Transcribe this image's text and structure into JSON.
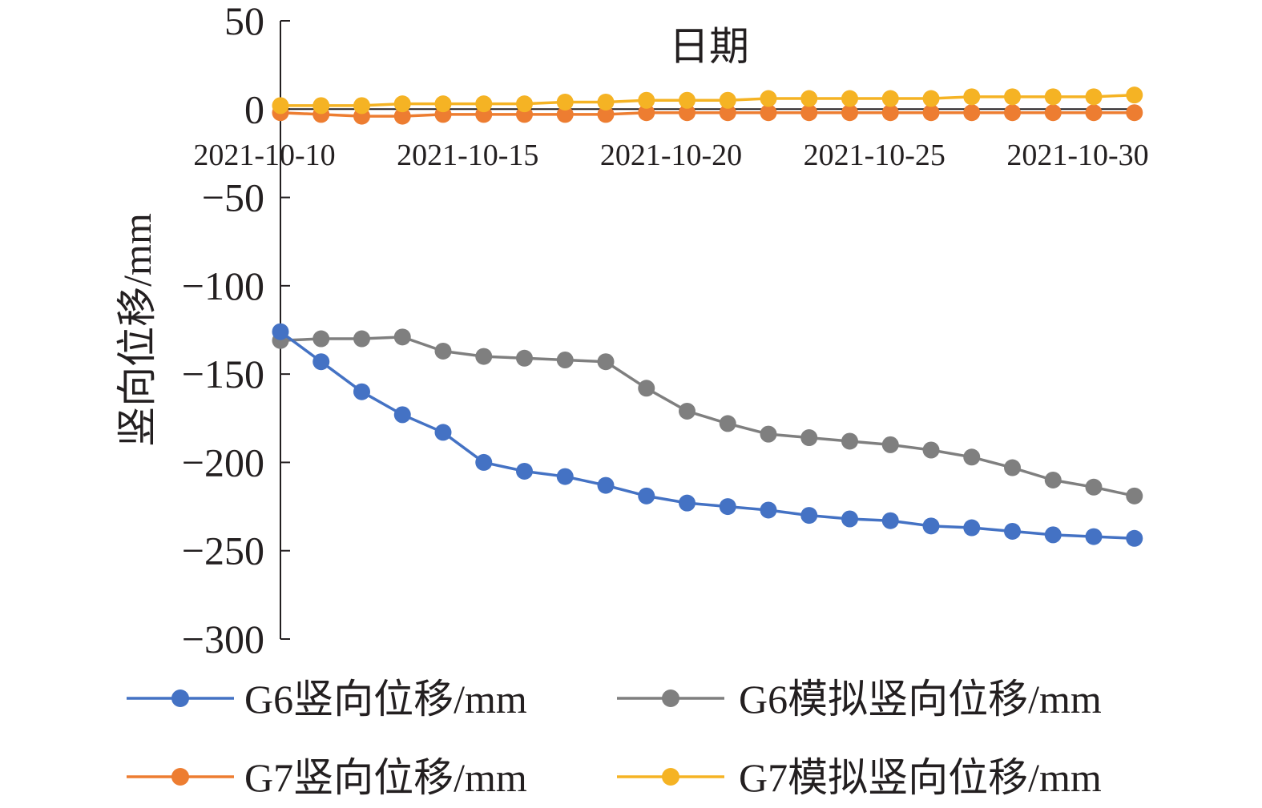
{
  "chart_data": {
    "type": "line",
    "title": "",
    "xlabel": "日期",
    "ylabel": "竖向位移/mm",
    "ylim": [
      -300,
      50
    ],
    "yticks": [
      50,
      0,
      -50,
      -100,
      -150,
      -200,
      -250,
      -300
    ],
    "ytick_labels": [
      "50",
      "0",
      "−50",
      "−100",
      "−150",
      "−200",
      "−250",
      "−300"
    ],
    "x": [
      "2021-10-10",
      "2021-10-11",
      "2021-10-12",
      "2021-10-13",
      "2021-10-14",
      "2021-10-15",
      "2021-10-16",
      "2021-10-17",
      "2021-10-18",
      "2021-10-19",
      "2021-10-20",
      "2021-10-21",
      "2021-10-22",
      "2021-10-23",
      "2021-10-24",
      "2021-10-25",
      "2021-10-26",
      "2021-10-27",
      "2021-10-28",
      "2021-10-29",
      "2021-10-30",
      "2021-10-31"
    ],
    "xtick_labels": [
      "2021-10-10",
      "2021-10-15",
      "2021-10-20",
      "2021-10-25",
      "2021-10-30"
    ],
    "grid": false,
    "legend_position": "bottom",
    "series": [
      {
        "name": "G6竖向位移/mm",
        "color": "#4472c4",
        "values": [
          -126,
          -143,
          -160,
          -173,
          -183,
          -200,
          -205,
          -208,
          -213,
          -219,
          -223,
          -225,
          -227,
          -230,
          -232,
          -233,
          -236,
          -237,
          -239,
          -241,
          -242,
          -243
        ]
      },
      {
        "name": "G6模拟竖向位移/mm",
        "color": "#7f7f7f",
        "values": [
          -131,
          -130,
          -130,
          -129,
          -137,
          -140,
          -141,
          -142,
          -143,
          -158,
          -171,
          -178,
          -184,
          -186,
          -188,
          -190,
          -193,
          -197,
          -203,
          -210,
          -214,
          -219
        ]
      },
      {
        "name": "G7竖向位移/mm",
        "color": "#ed7d31",
        "values": [
          -2,
          -3,
          -4,
          -4,
          -3,
          -3,
          -3,
          -3,
          -3,
          -2,
          -2,
          -2,
          -2,
          -2,
          -2,
          -2,
          -2,
          -2,
          -2,
          -2,
          -2,
          -2
        ]
      },
      {
        "name": "G7模拟竖向位移/mm",
        "color": "#f5b324",
        "values": [
          2,
          2,
          2,
          3,
          3,
          3,
          3,
          4,
          4,
          5,
          5,
          5,
          6,
          6,
          6,
          6,
          6,
          7,
          7,
          7,
          7,
          8
        ]
      }
    ]
  }
}
